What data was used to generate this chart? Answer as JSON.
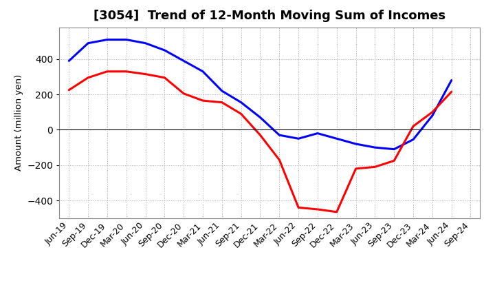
{
  "title": "[3054]  Trend of 12-Month Moving Sum of Incomes",
  "ylabel": "Amount (million yen)",
  "x_labels": [
    "Jun-19",
    "Sep-19",
    "Dec-19",
    "Mar-20",
    "Jun-20",
    "Sep-20",
    "Dec-20",
    "Mar-21",
    "Jun-21",
    "Sep-21",
    "Dec-21",
    "Mar-22",
    "Jun-22",
    "Sep-22",
    "Dec-22",
    "Mar-23",
    "Jun-23",
    "Sep-23",
    "Dec-23",
    "Mar-24",
    "Jun-24",
    "Sep-24"
  ],
  "ordinary_income": [
    390,
    490,
    510,
    510,
    490,
    450,
    390,
    330,
    220,
    155,
    70,
    -30,
    -50,
    -20,
    -50,
    -80,
    -100,
    -110,
    -55,
    80,
    280,
    null
  ],
  "net_income": [
    225,
    295,
    330,
    330,
    315,
    295,
    205,
    165,
    155,
    90,
    -30,
    -170,
    -440,
    -450,
    -465,
    -220,
    -210,
    -175,
    20,
    100,
    215,
    null
  ],
  "ordinary_income_color": "#0000FF",
  "net_income_color": "#FF0000",
  "ylim": [
    -500,
    580
  ],
  "yticks": [
    -400,
    -200,
    0,
    200,
    400
  ],
  "bg_color": "#FFFFFF",
  "plot_bg_color": "#FFFFFF",
  "grid_color": "#AAAAAA",
  "line_width": 2.2,
  "title_fontsize": 13,
  "label_fontsize": 9.5,
  "tick_fontsize": 9
}
